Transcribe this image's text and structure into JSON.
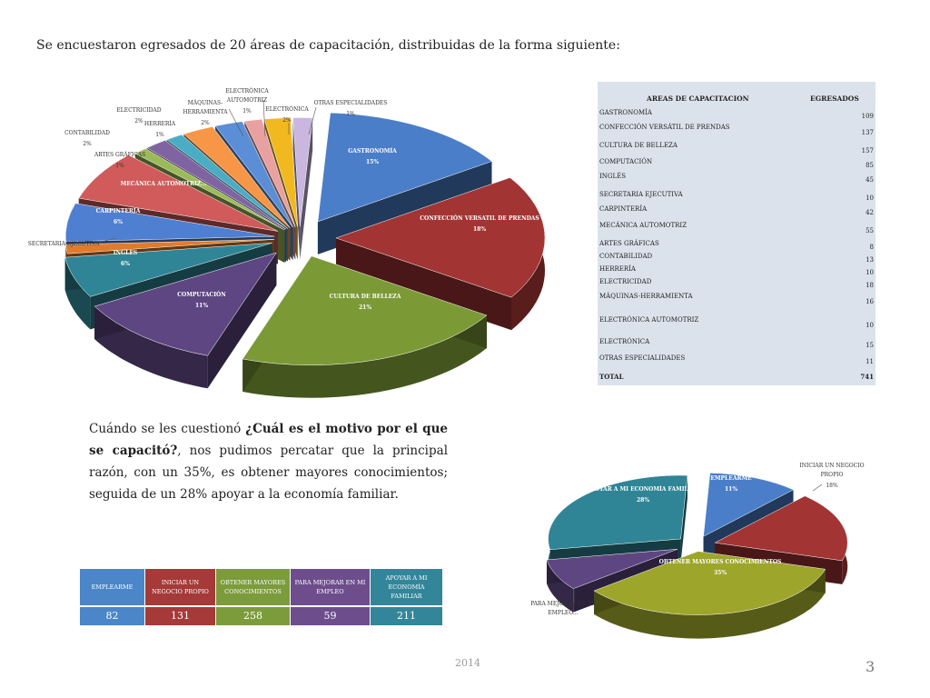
{
  "heading": "Se encuestaron egresados de 20 áreas de capacitación, distribuidas de la forma siguiente:",
  "chart_data": [
    {
      "type": "pie",
      "title": "",
      "slices": [
        {
          "name": "GASTRONOMÍA",
          "pct_label": "15%",
          "value": 109,
          "color": "#4a7ec9",
          "label": "in"
        },
        {
          "name": "CONFECCIÓN VERSATIL DE PRENDAS",
          "pct_label": "18%",
          "value": 137,
          "color": "#a23433",
          "label": "in"
        },
        {
          "name": "CULTURA DE BELLEZA",
          "pct_label": "21%",
          "value": 157,
          "color": "#7b9a36",
          "label": "in"
        },
        {
          "name": "COMPUTACIÓN",
          "pct_label": "11%",
          "value": 85,
          "color": "#5e4682",
          "label": "in"
        },
        {
          "name": "INGLÉS",
          "pct_label": "6%",
          "value": 45,
          "color": "#2f8595",
          "label": "in"
        },
        {
          "name": "SECRETARIA EJECUTIVA",
          "pct_label": "",
          "value": 10,
          "color": "#e07b2c",
          "label": "out"
        },
        {
          "name": "CARPINTERÍA",
          "pct_label": "6%",
          "value": 42,
          "color": "#4f7fd0",
          "label": "in"
        },
        {
          "name": "MECÁNICA AUTOMOTRIZ...",
          "pct_label": "",
          "value": 55,
          "color": "#d05b5a",
          "label": "in"
        },
        {
          "name": "ARTES GRÁFICAS",
          "pct_label": "1%",
          "value": 8,
          "color": "#9bbb59",
          "label": "out"
        },
        {
          "name": "CONTABILIDAD",
          "pct_label": "2%",
          "value": 13,
          "color": "#8064a2",
          "label": "out"
        },
        {
          "name": "HERRERÍA",
          "pct_label": "1%",
          "value": 10,
          "color": "#4bacc6",
          "label": "out"
        },
        {
          "name": "ELECTRICIDAD",
          "pct_label": "2%",
          "value": 18,
          "color": "#f79646",
          "label": "out"
        },
        {
          "name": "MÁQUINAS-HERRAMIENTA",
          "pct_label": "2%",
          "value": 16,
          "color": "#5b8ed6",
          "label": "out"
        },
        {
          "name": "ELECTRÓNICA AUTOMOTRIZ",
          "pct_label": "1%",
          "value": 10,
          "color": "#e8a0a0",
          "label": "out"
        },
        {
          "name": "ELECTRÓNICA",
          "pct_label": "2%",
          "value": 15,
          "color": "#f2b820",
          "label": "out"
        },
        {
          "name": "OTRAS ESPECIALIDADES",
          "pct_label": "1%",
          "value": 11,
          "color": "#c9b7e0",
          "label": "out"
        }
      ]
    },
    {
      "type": "pie",
      "title": "",
      "slices": [
        {
          "name": "EMPLEARME",
          "pct_label": "11%",
          "value": 82,
          "color": "#4a7ec9",
          "label": "in"
        },
        {
          "name": "INICIAR UN NEGOCIO PROPIO",
          "pct_label": "18%",
          "value": 131,
          "color": "#a23433",
          "label": "out"
        },
        {
          "name": "OBTENER MAYORES CONOCIMIENTOS",
          "pct_label": "35%",
          "value": 258,
          "color": "#9ea52b",
          "label": "in"
        },
        {
          "name": "PARA MEJORAR EN MI EMPLEO...",
          "pct_label": "",
          "value": 59,
          "color": "#5e4682",
          "label": "out"
        },
        {
          "name": "APOYAR A MI ECONOMÍA FAMILIAR",
          "pct_label": "28%",
          "value": 211,
          "color": "#2f8595",
          "label": "in"
        }
      ]
    }
  ],
  "area_table": {
    "header_area": "AREAS DE CAPACITACION",
    "header_count": "EGRESADOS",
    "rows": [
      {
        "name": "GASTRONOMÍA",
        "value": "109"
      },
      {
        "name": "CONFECCIÓN VERSÁTIL DE PRENDAS",
        "value": "137"
      },
      {
        "name": "CULTURA DE BELLEZA",
        "value": "157"
      },
      {
        "name": "COMPUTACIÓN",
        "value": "85"
      },
      {
        "name": "INGLÉS",
        "value": "45"
      },
      {
        "name": "SECRETARIA EJECUTIVA",
        "value": "10"
      },
      {
        "name": "CARPINTERÍA",
        "value": "42"
      },
      {
        "name": "MECÁNICA AUTOMOTRIZ",
        "value": "55"
      },
      {
        "name": "ARTES GRÁFICAS",
        "value": "8"
      },
      {
        "name": "CONTABILIDAD",
        "value": "13"
      },
      {
        "name": "HERRERÍA",
        "value": "10"
      },
      {
        "name": "ELECTRICIDAD",
        "value": "18"
      },
      {
        "name": "MÁQUINAS-HERRAMIENTA",
        "value": "16"
      },
      {
        "name": "ELECTRÓNICA AUTOMOTRIZ",
        "value": "10"
      },
      {
        "name": "ELECTRÓNICA",
        "value": "15"
      },
      {
        "name": "OTRAS ESPECIALIDADES",
        "value": "11"
      }
    ],
    "total_label": "TOTAL",
    "total_value": "741"
  },
  "paragraph": {
    "before": "Cuándo se les cuestionó ",
    "question": "¿Cuál es el motivo por el que se capacitó?",
    "after": ", nos pudimos percatar que la principal razón, con un 35%, es obtener mayores conocimientos; seguida de un 28% apoyar a la economía familiar."
  },
  "motive_table": {
    "headers": [
      "EMPLEARME",
      "INICIAR UN NEGOCIO PROPIO",
      "OBTENER MAYORES CONOCIMIENTOS",
      "PARA MEJORAR EN MI EMPLEO",
      "APOYAR A MI ECONOMÍA FAMILIAR"
    ],
    "values": [
      "82",
      "131",
      "258",
      "59",
      "211"
    ],
    "colors": [
      "#4a86c8",
      "#a53a38",
      "#7c9b3b",
      "#6d4d8c",
      "#33869a"
    ]
  },
  "footer": {
    "year": "2014",
    "page": "3"
  }
}
